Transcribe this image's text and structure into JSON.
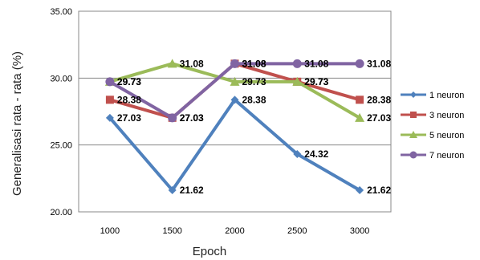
{
  "chart_data": {
    "type": "line",
    "title": "",
    "xlabel": "Epoch",
    "ylabel": "Generalisasi rata - rata (%)",
    "categories": [
      "1000",
      "1500",
      "2000",
      "2500",
      "3000"
    ],
    "ylim": [
      20,
      35
    ],
    "yticks": [
      "20.00",
      "25.00",
      "30.00",
      "35.00"
    ],
    "grid": true,
    "legend_position": "right",
    "series": [
      {
        "name": "1 neuron",
        "values": [
          27.03,
          21.62,
          28.38,
          24.32,
          21.62
        ],
        "labels": [
          "27.03",
          "21.62",
          "28.38",
          "24.32",
          "21.62"
        ],
        "color": "#4f81bd",
        "marker": "diamond"
      },
      {
        "name": "3 neuron",
        "values": [
          28.38,
          27.03,
          31.08,
          29.73,
          28.38
        ],
        "labels": [
          "28.38",
          "27.03",
          "31.08",
          "29.73",
          "28.38"
        ],
        "color": "#c0504d",
        "marker": "square"
      },
      {
        "name": "5 neuron",
        "values": [
          29.73,
          31.08,
          29.73,
          29.73,
          27.03
        ],
        "labels": [
          "29.73",
          "31.08",
          "29.73",
          "29.73",
          "27.03"
        ],
        "color": "#9bbb59",
        "marker": "triangle"
      },
      {
        "name": "7 neuron",
        "values": [
          29.73,
          27.03,
          31.08,
          31.08,
          31.08
        ],
        "labels": [
          "29.73",
          "27.03",
          "31.08",
          "31.08",
          "31.08"
        ],
        "color": "#8064a2",
        "marker": "circle"
      }
    ]
  }
}
